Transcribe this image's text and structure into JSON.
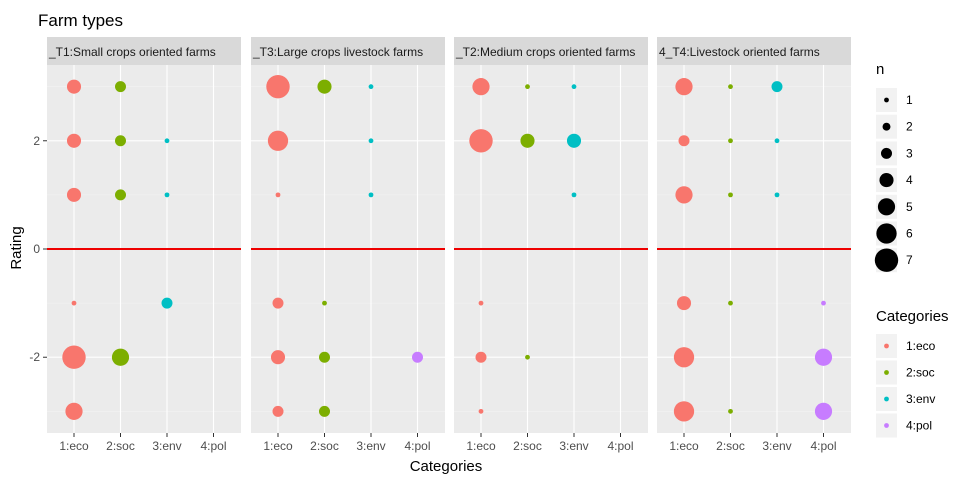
{
  "chart_data": {
    "type": "scatter",
    "title": "Farm types",
    "xlabel": "Categories",
    "ylabel": "Rating",
    "categories": [
      "1:eco",
      "2:soc",
      "3:env",
      "4:pol"
    ],
    "ylim": [
      -3.4,
      3.4
    ],
    "y_ticks": [
      -2,
      0,
      2
    ],
    "hline": {
      "y": 0,
      "color": "#ee0000"
    },
    "grid": true,
    "category_colors": {
      "1:eco": "#F8766D",
      "2:soc": "#7CAE00",
      "3:env": "#00BFC4",
      "4:pol": "#C77CFF"
    },
    "panels": [
      {
        "label": "_T1:Small crops oriented farms",
        "points": [
          {
            "x": "1:eco",
            "y": 3,
            "n": 4
          },
          {
            "x": "2:soc",
            "y": 3,
            "n": 3
          },
          {
            "x": "1:eco",
            "y": 2,
            "n": 4
          },
          {
            "x": "2:soc",
            "y": 2,
            "n": 3
          },
          {
            "x": "3:env",
            "y": 2,
            "n": 1
          },
          {
            "x": "1:eco",
            "y": 1,
            "n": 4
          },
          {
            "x": "2:soc",
            "y": 1,
            "n": 3
          },
          {
            "x": "3:env",
            "y": 1,
            "n": 1
          },
          {
            "x": "1:eco",
            "y": -1,
            "n": 1
          },
          {
            "x": "3:env",
            "y": -1,
            "n": 3
          },
          {
            "x": "1:eco",
            "y": -2,
            "n": 7
          },
          {
            "x": "2:soc",
            "y": -2,
            "n": 5
          },
          {
            "x": "1:eco",
            "y": -3,
            "n": 5
          }
        ]
      },
      {
        "label": "_T3:Large crops livestock farms",
        "points": [
          {
            "x": "1:eco",
            "y": 3,
            "n": 7
          },
          {
            "x": "2:soc",
            "y": 3,
            "n": 4
          },
          {
            "x": "3:env",
            "y": 3,
            "n": 1
          },
          {
            "x": "1:eco",
            "y": 2,
            "n": 6
          },
          {
            "x": "3:env",
            "y": 2,
            "n": 1
          },
          {
            "x": "1:eco",
            "y": 1,
            "n": 1
          },
          {
            "x": "3:env",
            "y": 1,
            "n": 1
          },
          {
            "x": "1:eco",
            "y": -1,
            "n": 3
          },
          {
            "x": "2:soc",
            "y": -1,
            "n": 1
          },
          {
            "x": "1:eco",
            "y": -2,
            "n": 4
          },
          {
            "x": "2:soc",
            "y": -2,
            "n": 3
          },
          {
            "x": "4:pol",
            "y": -2,
            "n": 3
          },
          {
            "x": "1:eco",
            "y": -3,
            "n": 3
          },
          {
            "x": "2:soc",
            "y": -3,
            "n": 3
          }
        ]
      },
      {
        "label": "_T2:Medium crops oriented farms",
        "points": [
          {
            "x": "1:eco",
            "y": 3,
            "n": 5
          },
          {
            "x": "2:soc",
            "y": 3,
            "n": 1
          },
          {
            "x": "3:env",
            "y": 3,
            "n": 1
          },
          {
            "x": "1:eco",
            "y": 2,
            "n": 7
          },
          {
            "x": "2:soc",
            "y": 2,
            "n": 4
          },
          {
            "x": "3:env",
            "y": 2,
            "n": 4
          },
          {
            "x": "3:env",
            "y": 1,
            "n": 1
          },
          {
            "x": "1:eco",
            "y": -1,
            "n": 1
          },
          {
            "x": "1:eco",
            "y": -2,
            "n": 3
          },
          {
            "x": "2:soc",
            "y": -2,
            "n": 1
          },
          {
            "x": "1:eco",
            "y": -3,
            "n": 1
          }
        ]
      },
      {
        "label": "4_T4:Livestock oriented farms",
        "points": [
          {
            "x": "1:eco",
            "y": 3,
            "n": 5
          },
          {
            "x": "2:soc",
            "y": 3,
            "n": 1
          },
          {
            "x": "3:env",
            "y": 3,
            "n": 3
          },
          {
            "x": "1:eco",
            "y": 2,
            "n": 3
          },
          {
            "x": "2:soc",
            "y": 2,
            "n": 1
          },
          {
            "x": "3:env",
            "y": 2,
            "n": 1
          },
          {
            "x": "1:eco",
            "y": 1,
            "n": 5
          },
          {
            "x": "2:soc",
            "y": 1,
            "n": 1
          },
          {
            "x": "3:env",
            "y": 1,
            "n": 1
          },
          {
            "x": "1:eco",
            "y": -1,
            "n": 4
          },
          {
            "x": "2:soc",
            "y": -1,
            "n": 1
          },
          {
            "x": "4:pol",
            "y": -1,
            "n": 1
          },
          {
            "x": "1:eco",
            "y": -2,
            "n": 6
          },
          {
            "x": "4:pol",
            "y": -2,
            "n": 5
          },
          {
            "x": "1:eco",
            "y": -3,
            "n": 6
          },
          {
            "x": "2:soc",
            "y": -3,
            "n": 1
          },
          {
            "x": "4:pol",
            "y": -3,
            "n": 5
          }
        ]
      }
    ],
    "legend": {
      "size_title": "n",
      "size_values": [
        1,
        2,
        3,
        4,
        5,
        6,
        7
      ],
      "color_title": "Categories",
      "color_entries": [
        "1:eco",
        "2:soc",
        "3:env",
        "4:pol"
      ],
      "placement": "right"
    }
  }
}
